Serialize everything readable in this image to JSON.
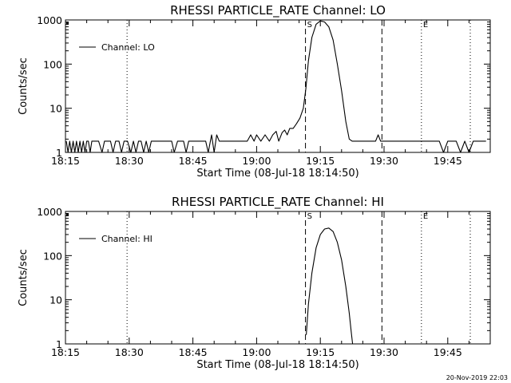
{
  "footer": "20-Nov-2019 22:03",
  "chart_data": [
    {
      "type": "line",
      "title": "RHESSI PARTICLE_RATE Channel: LO",
      "ylabel": "Counts/sec",
      "xlabel": "Start Time (08-Jul-18 18:14:50)",
      "yscale": "log",
      "ylim": [
        1,
        1000
      ],
      "xlim_minutes": [
        0,
        100
      ],
      "xticks": [
        {
          "t": 0,
          "label": "18:15"
        },
        {
          "t": 15,
          "label": "18:30"
        },
        {
          "t": 30,
          "label": "18:45"
        },
        {
          "t": 45,
          "label": "19:00"
        },
        {
          "t": 60,
          "label": "19:15"
        },
        {
          "t": 75,
          "label": "19:30"
        },
        {
          "t": 90,
          "label": "19:45"
        }
      ],
      "yticks": [
        {
          "v": 1,
          "label": "1"
        },
        {
          "v": 10,
          "label": "10"
        },
        {
          "v": 100,
          "label": "100"
        },
        {
          "v": 1000,
          "label": "1000"
        }
      ],
      "legend": "Channel: LO",
      "markers": [
        {
          "t": 14.5,
          "style": "dotted",
          "label": ""
        },
        {
          "t": 56.5,
          "style": "dashed",
          "label": "S"
        },
        {
          "t": 74.5,
          "style": "dashed",
          "label": ""
        },
        {
          "t": 83.8,
          "style": "dotted",
          "label": "E"
        },
        {
          "t": 95.3,
          "style": "dotted",
          "label": ""
        }
      ],
      "series": [
        {
          "name": "Channel: LO",
          "t": [
            0.2,
            0.6,
            1.0,
            1.4,
            1.8,
            2.2,
            2.6,
            3.0,
            3.4,
            3.8,
            4.2,
            4.6,
            5.0,
            5.4,
            5.8,
            6.2,
            6.6,
            7.0,
            7.8,
            8.6,
            9.2,
            9.8,
            10.6,
            11.2,
            11.8,
            12.6,
            13.2,
            13.8,
            14.6,
            15.4,
            16.0,
            16.6,
            17.2,
            17.8,
            18.4,
            19.0,
            19.6,
            20.2,
            21.0,
            22.0,
            23.0,
            24.0,
            25.0,
            25.6,
            26.4,
            27.0,
            27.8,
            28.4,
            29.0,
            30.0,
            31.0,
            32.0,
            33.0,
            33.6,
            34.4,
            35.0,
            35.6,
            36.2,
            37.0,
            38.0,
            39.0,
            40.0,
            41.0,
            42.0,
            42.8,
            43.6,
            44.4,
            45.0,
            46.0,
            47.0,
            48.0,
            48.8,
            49.6,
            50.2,
            51.0,
            51.6,
            52.2,
            52.8,
            53.6,
            54.4,
            55.2,
            56.0,
            56.6,
            57.2,
            58.0,
            59.0,
            60.0,
            61.0,
            62.0,
            63.0,
            64.0,
            65.0,
            66.0,
            66.8,
            67.5,
            68.2,
            69.0,
            70.0,
            71.0,
            72.0,
            73.0,
            73.6,
            74.2,
            75.0,
            76.0,
            77.0,
            78.0,
            79.0,
            80.0,
            81.0,
            82.0,
            83.0,
            84.0,
            85.0,
            86.0,
            87.0,
            88.0,
            89.0,
            90.0,
            91.0,
            92.0,
            93.0,
            94.0,
            95.0,
            96.0,
            97.5,
            99.0
          ],
          "values": [
            1.8,
            1,
            1.8,
            1,
            1.8,
            1,
            1.8,
            1,
            1.8,
            1,
            1.8,
            1,
            1.8,
            1.8,
            1,
            1.8,
            1.8,
            1.8,
            1.8,
            1,
            1.8,
            1.8,
            1.8,
            1,
            1.8,
            1.8,
            1,
            1.8,
            1.8,
            1,
            1.8,
            1,
            1.8,
            1.8,
            1,
            1.8,
            1,
            1.8,
            1.8,
            1.8,
            1.8,
            1.8,
            1.8,
            1,
            1.8,
            1.8,
            1.8,
            1,
            1.8,
            1.8,
            1.8,
            1.8,
            1.8,
            1,
            2.5,
            1,
            2.5,
            1.8,
            1.8,
            1.8,
            1.8,
            1.8,
            1.8,
            1.8,
            1.8,
            2.5,
            1.8,
            2.5,
            1.8,
            2.5,
            1.8,
            2.5,
            3,
            1.8,
            2.8,
            3.2,
            2.5,
            3.5,
            3.5,
            4.5,
            6,
            10,
            28,
            120,
            400,
            800,
            950,
            900,
            700,
            350,
            100,
            25,
            5,
            2,
            1.8,
            1.8,
            1.8,
            1.8,
            1.8,
            1.8,
            1.8,
            2.5,
            1.8,
            1.8,
            1.8,
            1.8,
            1.8,
            1.8,
            1.8,
            1.8,
            1.8,
            1.8,
            1.8,
            1.8,
            1.8,
            1.8,
            1.8,
            1,
            1.8,
            1.8,
            1.8,
            1,
            1.8,
            1,
            1.8,
            1.8,
            1.8
          ]
        }
      ]
    },
    {
      "type": "line",
      "title": "RHESSI PARTICLE_RATE Channel: HI",
      "ylabel": "Counts/sec",
      "xlabel": "Start Time (08-Jul-18 18:14:50)",
      "yscale": "log",
      "ylim": [
        1,
        1000
      ],
      "xlim_minutes": [
        0,
        100
      ],
      "xticks": [
        {
          "t": 0,
          "label": "18:15"
        },
        {
          "t": 15,
          "label": "18:30"
        },
        {
          "t": 30,
          "label": "18:45"
        },
        {
          "t": 45,
          "label": "19:00"
        },
        {
          "t": 60,
          "label": "19:15"
        },
        {
          "t": 75,
          "label": "19:30"
        },
        {
          "t": 90,
          "label": "19:45"
        }
      ],
      "yticks": [
        {
          "v": 1,
          "label": "1"
        },
        {
          "v": 10,
          "label": "10"
        },
        {
          "v": 100,
          "label": "100"
        },
        {
          "v": 1000,
          "label": "1000"
        }
      ],
      "legend": "Channel: HI",
      "markers": [
        {
          "t": 14.5,
          "style": "dotted",
          "label": ""
        },
        {
          "t": 56.5,
          "style": "dashed",
          "label": "S"
        },
        {
          "t": 74.5,
          "style": "dashed",
          "label": ""
        },
        {
          "t": 83.8,
          "style": "dotted",
          "label": "E"
        },
        {
          "t": 95.3,
          "style": "dotted",
          "label": ""
        }
      ],
      "series": [
        {
          "name": "Channel: HI",
          "t": [
            56.7,
            57.2,
            58.0,
            59.0,
            60.0,
            61.0,
            62.0,
            63.0,
            64.0,
            65.0,
            66.0,
            66.8,
            67.3,
            67.6
          ],
          "values": [
            1.6,
            8,
            40,
            150,
            300,
            400,
            420,
            350,
            200,
            80,
            20,
            5,
            1.8,
            1
          ]
        }
      ]
    }
  ]
}
